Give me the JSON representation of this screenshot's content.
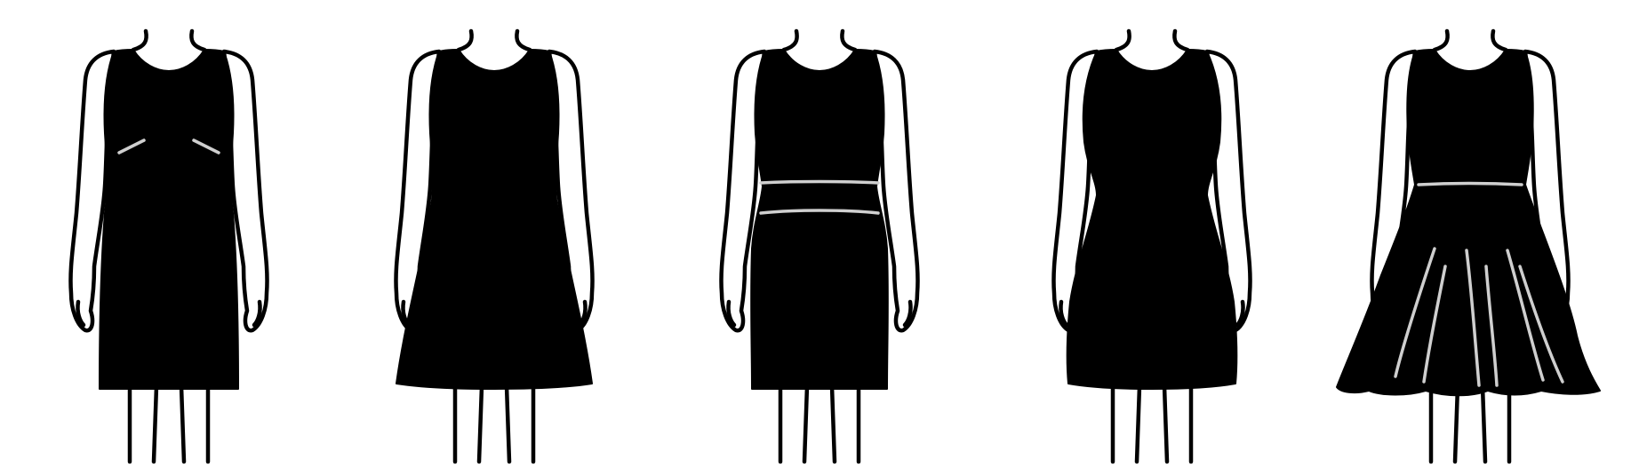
{
  "figures": [
    {
      "style": "sheath-with-darts",
      "skirt": "straight",
      "detail": "bust-darts"
    },
    {
      "style": "a-line",
      "skirt": "a-line",
      "detail": "none"
    },
    {
      "style": "sheath-with-waistband",
      "skirt": "straight",
      "detail": "waistband"
    },
    {
      "style": "fit-and-flare",
      "skirt": "flare",
      "detail": "none"
    },
    {
      "style": "fit-and-flare-pleated",
      "skirt": "godet-flare",
      "detail": "waist-seam-and-pleats"
    }
  ],
  "colors": {
    "background": "#ffffff",
    "dress": "#000000",
    "outline": "#000000",
    "seam": "#cfcfcf"
  }
}
